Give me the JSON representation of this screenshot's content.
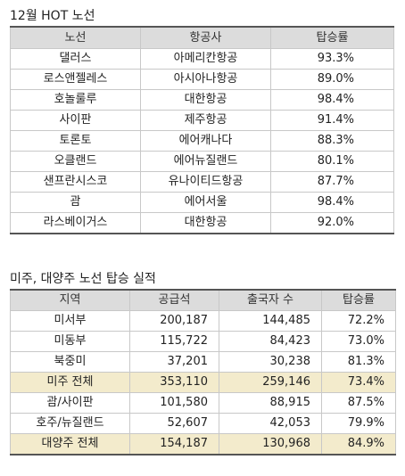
{
  "section1": {
    "title": "12월 HOT 노선",
    "headers": [
      "노선",
      "항공사",
      "탑승률"
    ],
    "rows": [
      [
        "댈러스",
        "아메리칸항공",
        "93.3%"
      ],
      [
        "로스앤젤레스",
        "아시아나항공",
        "89.0%"
      ],
      [
        "호놀룰루",
        "대한항공",
        "98.4%"
      ],
      [
        "사이판",
        "제주항공",
        "91.4%"
      ],
      [
        "토론토",
        "에어캐나다",
        "88.3%"
      ],
      [
        "오클랜드",
        "에어뉴질랜드",
        "80.1%"
      ],
      [
        "샌프란시스코",
        "유나이티드항공",
        "87.7%"
      ],
      [
        "괌",
        "에어서울",
        "98.4%"
      ],
      [
        "라스베이거스",
        "대한항공",
        "92.0%"
      ]
    ]
  },
  "section2": {
    "title": "미주, 대양주 노선 탑승 실적",
    "headers": [
      "지역",
      "공급석",
      "출국자 수",
      "탑승률"
    ],
    "rows": [
      [
        "미서부",
        "200,187",
        "144,485",
        "72.2%"
      ],
      [
        "미동부",
        "115,722",
        "84,423",
        "73.0%"
      ],
      [
        "북중미",
        "37,201",
        "30,238",
        "81.3%"
      ],
      [
        "미주 전체",
        "353,110",
        "259,146",
        "73.4%"
      ],
      [
        "괌/사이판",
        "101,580",
        "88,915",
        "87.5%"
      ],
      [
        "호주/뉴질랜드",
        "52,607",
        "42,053",
        "79.9%"
      ],
      [
        "대양주 전체",
        "154,187",
        "130,968",
        "84.9%"
      ]
    ],
    "total_row_indices": [
      3,
      6
    ],
    "total_row_color": "#f3ebcc"
  },
  "colors": {
    "header_bg": "#dcdcdc",
    "border": "#c8c8c8",
    "rule": "#555555"
  }
}
